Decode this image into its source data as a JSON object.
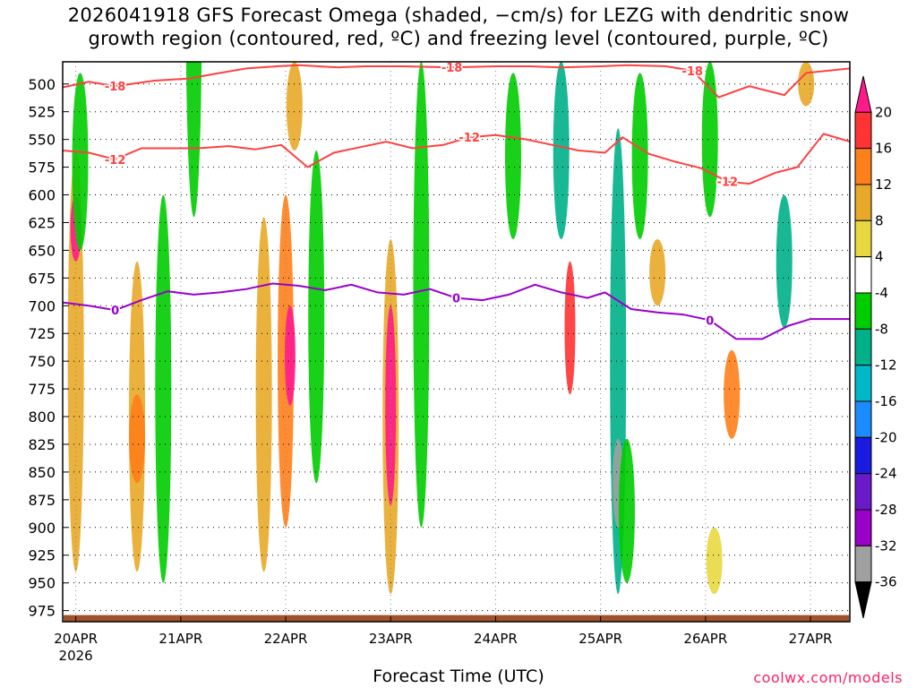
{
  "title_lines": [
    "2026041918 GFS Forecast Omega (shaded, −cm/s) for LEZG with dendritic snow",
    "growth region (contoured, red, ºC) and freezing level (contoured, purple, ºC)"
  ],
  "credit": "coolwx.com/models",
  "chart_data": {
    "type": "heatmap",
    "title": "2026041918 GFS Forecast Omega (shaded, −cm/s) for LEZG with dendritic snow growth region (contoured, red, ºC) and freezing level (contoured, purple, ºC)",
    "xlabel": "Forecast Time (UTC)",
    "ylabel": "",
    "x_ticks": [
      "20APR",
      "21APR",
      "22APR",
      "23APR",
      "24APR",
      "25APR",
      "26APR",
      "27APR"
    ],
    "x_tick_sublabel": "2026",
    "xlim_hours": [
      -3,
      177
    ],
    "y_ticks": [
      500,
      525,
      550,
      575,
      600,
      625,
      650,
      675,
      700,
      725,
      750,
      775,
      800,
      825,
      850,
      875,
      900,
      925,
      950,
      975
    ],
    "ylim_hpa": [
      480,
      985
    ],
    "colorbar_levels": [
      20,
      16,
      12,
      8,
      4,
      -4,
      -8,
      -12,
      -16,
      -20,
      -24,
      -28,
      -32,
      -36
    ],
    "colorbar_colors": [
      "#ff1a8c",
      "#ff3333",
      "#ff7f1a",
      "#e8a828",
      "#e8d840",
      "#ffffff",
      "#00cc00",
      "#00b088",
      "#00b8c8",
      "#1a8cff",
      "#1a1ae0",
      "#6a1ac8",
      "#9a00c8",
      "#a0a0a0",
      "#000000"
    ],
    "omega_patches": [
      {
        "hour": 0,
        "p": [
          560,
          940
        ],
        "v": 8
      },
      {
        "hour": 0,
        "p": [
          600,
          660
        ],
        "v": 20
      },
      {
        "hour": 1,
        "p": [
          490,
          650
        ],
        "v": -8
      },
      {
        "hour": 14,
        "p": [
          660,
          940
        ],
        "v": 8
      },
      {
        "hour": 14,
        "p": [
          780,
          860
        ],
        "v": 12
      },
      {
        "hour": 20,
        "p": [
          600,
          950
        ],
        "v": -8
      },
      {
        "hour": 27,
        "p": [
          230,
          620
        ],
        "v": -8
      },
      {
        "hour": 43,
        "p": [
          620,
          940
        ],
        "v": 8
      },
      {
        "hour": 48,
        "p": [
          600,
          900
        ],
        "v": 12
      },
      {
        "hour": 49,
        "p": [
          700,
          790
        ],
        "v": 20
      },
      {
        "hour": 50,
        "p": [
          480,
          560
        ],
        "v": 8
      },
      {
        "hour": 55,
        "p": [
          560,
          860
        ],
        "v": -8
      },
      {
        "hour": 72,
        "p": [
          640,
          960
        ],
        "v": 8
      },
      {
        "hour": 72,
        "p": [
          700,
          880
        ],
        "v": 20
      },
      {
        "hour": 79,
        "p": [
          480,
          900
        ],
        "v": -8
      },
      {
        "hour": 100,
        "p": [
          490,
          640
        ],
        "v": -8
      },
      {
        "hour": 111,
        "p": [
          480,
          640
        ],
        "v": -12
      },
      {
        "hour": 113,
        "p": [
          660,
          780
        ],
        "v": 16
      },
      {
        "hour": 124,
        "p": [
          540,
          960
        ],
        "v": -12
      },
      {
        "hour": 124,
        "p": [
          820,
          900
        ],
        "v": -36
      },
      {
        "hour": 126,
        "p": [
          820,
          950
        ],
        "v": -8
      },
      {
        "hour": 129,
        "p": [
          490,
          640
        ],
        "v": -8
      },
      {
        "hour": 133,
        "p": [
          640,
          700
        ],
        "v": 8
      },
      {
        "hour": 145,
        "p": [
          480,
          620
        ],
        "v": -8
      },
      {
        "hour": 146,
        "p": [
          900,
          960
        ],
        "v": 4
      },
      {
        "hour": 150,
        "p": [
          740,
          820
        ],
        "v": 12
      },
      {
        "hour": 162,
        "p": [
          600,
          720
        ],
        "v": -12
      },
      {
        "hour": 167,
        "p": [
          480,
          520
        ],
        "v": 8
      }
    ],
    "series": [
      {
        "name": "-18",
        "x": [
          -3,
          3,
          9,
          18,
          26,
          33,
          39,
          46,
          51,
          60,
          66,
          75,
          86,
          96,
          104,
          111,
          120,
          126,
          135,
          141,
          147,
          154,
          162,
          167,
          177
        ],
        "y": [
          503,
          498,
          502,
          497,
          495,
          490,
          486,
          484,
          483,
          485,
          484,
          484,
          485,
          484,
          484,
          485,
          484,
          483,
          484,
          488,
          512,
          502,
          510,
          490,
          486
        ]
      },
      {
        "name": "-12",
        "x": [
          -3,
          3,
          9,
          15,
          22,
          28,
          35,
          41,
          47,
          53,
          59,
          65,
          71,
          77,
          84,
          90,
          96,
          103,
          109,
          115,
          121,
          125,
          131,
          137,
          143,
          149,
          154,
          160,
          165,
          171,
          177
        ],
        "y": [
          560,
          562,
          568,
          558,
          558,
          558,
          556,
          559,
          555,
          575,
          562,
          557,
          552,
          558,
          555,
          548,
          546,
          550,
          555,
          560,
          562,
          548,
          563,
          570,
          576,
          588,
          590,
          580,
          575,
          545,
          552
        ]
      },
      {
        "name": "0",
        "x": [
          -3,
          3,
          9,
          15,
          21,
          27,
          33,
          39,
          45,
          51,
          57,
          63,
          69,
          75,
          81,
          87,
          93,
          99,
          105,
          111,
          117,
          121,
          127,
          133,
          139,
          145,
          151,
          157,
          163,
          168,
          177
        ],
        "y": [
          697,
          700,
          704,
          695,
          687,
          690,
          688,
          685,
          680,
          682,
          686,
          681,
          688,
          690,
          685,
          693,
          695,
          690,
          681,
          688,
          693,
          688,
          703,
          706,
          708,
          713,
          730,
          730,
          718,
          712,
          712
        ]
      }
    ],
    "contour_colors": {
      "-18": "#ff4040",
      "-12": "#ff4040",
      "0": "#9900cc"
    },
    "terrain_color": "#a0522d",
    "terrain_top_hpa": 979,
    "grid": "dotted"
  }
}
